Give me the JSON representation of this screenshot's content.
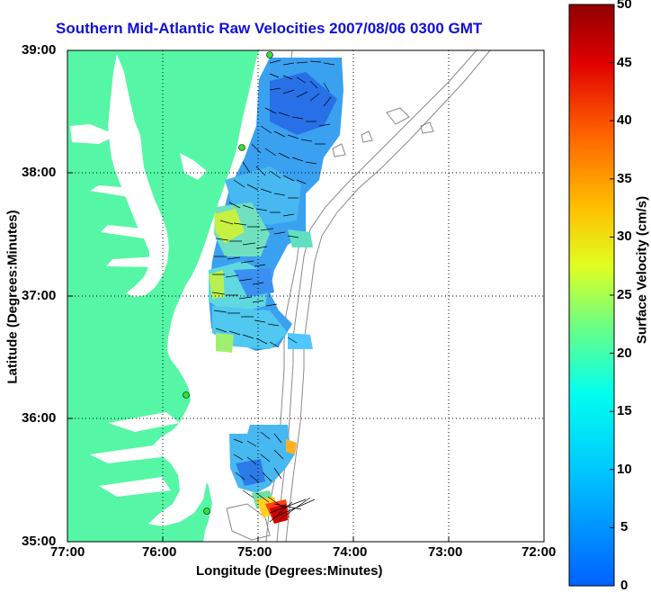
{
  "title": "Southern Mid-Atlantic Raw Velocities 2007/08/06 0300 GMT",
  "x_axis": {
    "label": "Longitude (Degrees:Minutes)",
    "ticks": [
      "77:00",
      "76:00",
      "75:00",
      "74:00",
      "73:00",
      "72:00"
    ]
  },
  "y_axis": {
    "label": "Latitude (Degrees:Minutes)",
    "ticks": [
      "39:00",
      "38:00",
      "37:00",
      "36:00",
      "35:00"
    ]
  },
  "colorbar": {
    "label": "Surface Velocity (cm/s)",
    "ticks": [
      "50",
      "45",
      "40",
      "35",
      "30",
      "25",
      "20",
      "15",
      "10",
      "5",
      "0"
    ],
    "range": [
      0,
      50
    ]
  },
  "colors": {
    "land": "#55f7a6",
    "title": "#1010d8",
    "station": "#33e030"
  }
}
